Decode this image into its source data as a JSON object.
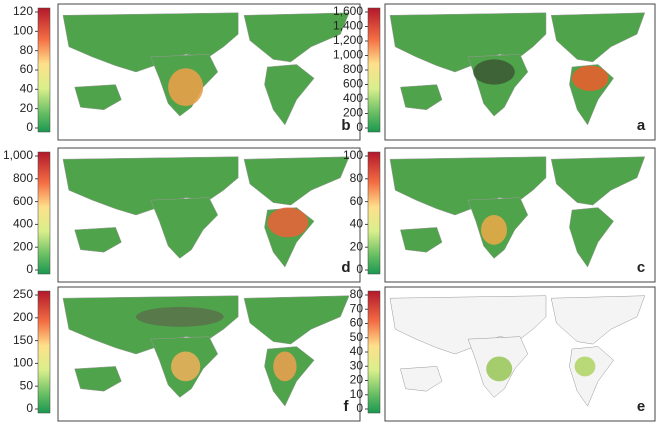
{
  "panels": [
    {
      "label": "b",
      "ticks": [
        "120",
        "100",
        "80",
        "60",
        "40",
        "20",
        "0"
      ]
    },
    {
      "label": "a",
      "ticks": [
        "1,600",
        "1,400",
        "1,200",
        "1,000",
        "800",
        "600",
        "400",
        "200",
        "0"
      ]
    },
    {
      "label": "d",
      "ticks": [
        "1,000",
        "800",
        "600",
        "400",
        "200",
        "0"
      ]
    },
    {
      "label": "c",
      "ticks": [
        "100",
        "80",
        "60",
        "40",
        "20",
        "0"
      ]
    },
    {
      "label": "f",
      "ticks": [
        "250",
        "200",
        "150",
        "100",
        "50",
        "0"
      ]
    },
    {
      "label": "e",
      "ticks": [
        "80",
        "70",
        "60",
        "50",
        "40",
        "30",
        "20",
        "10",
        "0"
      ]
    }
  ]
}
